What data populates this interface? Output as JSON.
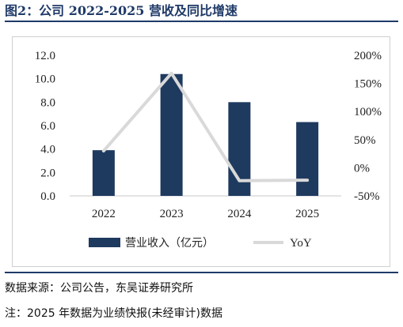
{
  "title": "图2：公司 2022-2025 营收及同比增速",
  "chart_data": {
    "type": "bar",
    "categories": [
      "2022",
      "2023",
      "2024",
      "2025"
    ],
    "series": [
      {
        "name": "营业收入（亿元）",
        "type": "bar",
        "axis": "left",
        "values": [
          3.9,
          10.4,
          8.0,
          6.3
        ],
        "color": "#1f3a5f"
      },
      {
        "name": "YoY",
        "type": "line",
        "axis": "right",
        "values": [
          0.3,
          1.68,
          -0.23,
          -0.22
        ],
        "color": "#d9d9d9"
      }
    ],
    "y_left": {
      "ylim": [
        0,
        12
      ],
      "ticks": [
        "0.0",
        "2.0",
        "4.0",
        "6.0",
        "8.0",
        "10.0",
        "12.0"
      ]
    },
    "y_right": {
      "ylim": [
        -0.5,
        2.0
      ],
      "ticks": [
        "-50%",
        "0%",
        "50%",
        "100%",
        "150%",
        "200%"
      ]
    },
    "legend": "bottom"
  },
  "footer": {
    "source": "数据来源：公司公告，东吴证券研究所",
    "note": "注：2025 年数据为业绩快报(未经审计)数据"
  }
}
